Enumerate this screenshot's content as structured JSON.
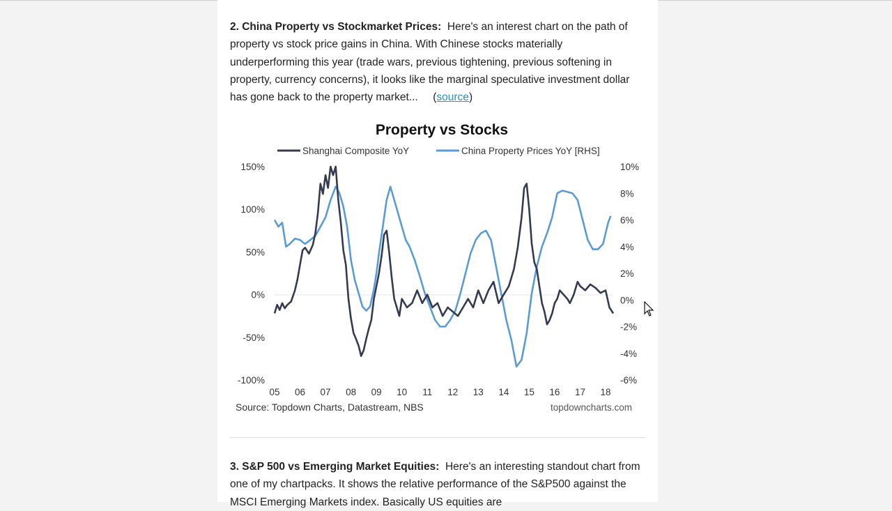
{
  "section2": {
    "heading": "2. China Property vs Stockmarket Prices:",
    "body": "Here's an interest chart on the path of property vs stock price gains in China.  With Chinese stocks materially underperforming this year (trade wars, previous tightening, previous softening in property, currency concerns), it looks like the marginal speculative investment dollar has gone back to the property market...",
    "link_open": "(",
    "link_text": "source",
    "link_close": ")"
  },
  "section3": {
    "heading": "3. S&P 500 vs Emerging Market Equities:",
    "body": "Here's an interesting standout chart from one of my chartpacks.  It shows the relative performance of the S&P500 against the MSCI Emerging Markets index.  Basically US equities are"
  },
  "chart_data": {
    "type": "line",
    "title": "Property vs Stocks",
    "source_text": "Source: Topdown Charts, Datastream, NBS",
    "watermark": "topdowncharts.com",
    "x_ticks": [
      "05",
      "06",
      "07",
      "08",
      "09",
      "10",
      "11",
      "12",
      "13",
      "14",
      "15",
      "16",
      "17",
      "18"
    ],
    "x_range": [
      2005,
      2018.3
    ],
    "y_left_ticks": [
      "150%",
      "100%",
      "50%",
      "0%",
      "-50%",
      "-100%"
    ],
    "y_left_range": [
      -100,
      150
    ],
    "y_right_ticks": [
      "10%",
      "8%",
      "6%",
      "4%",
      "2%",
      "0%",
      "-2%",
      "-4%",
      "-6%"
    ],
    "y_right_range": [
      -6,
      10
    ],
    "colors": {
      "stocks": "#343a4f",
      "property": "#5b9bd5"
    },
    "series": [
      {
        "name": "Shanghai Composite YoY",
        "axis": "left",
        "x": [
          2005.0,
          2005.1,
          2005.2,
          2005.3,
          2005.4,
          2005.5,
          2005.65,
          2005.8,
          2005.9,
          2006.0,
          2006.1,
          2006.2,
          2006.35,
          2006.5,
          2006.6,
          2006.7,
          2006.8,
          2006.9,
          2007.0,
          2007.1,
          2007.2,
          2007.3,
          2007.4,
          2007.5,
          2007.6,
          2007.7,
          2007.8,
          2007.9,
          2008.0,
          2008.1,
          2008.2,
          2008.3,
          2008.4,
          2008.5,
          2008.6,
          2008.7,
          2008.8,
          2008.9,
          2009.0,
          2009.1,
          2009.2,
          2009.3,
          2009.4,
          2009.5,
          2009.6,
          2009.7,
          2009.8,
          2009.9,
          2010.0,
          2010.2,
          2010.4,
          2010.6,
          2010.8,
          2011.0,
          2011.2,
          2011.4,
          2011.6,
          2011.8,
          2012.0,
          2012.2,
          2012.4,
          2012.6,
          2012.8,
          2013.0,
          2013.2,
          2013.4,
          2013.6,
          2013.8,
          2014.0,
          2014.2,
          2014.4,
          2014.55,
          2014.7,
          2014.8,
          2014.9,
          2015.0,
          2015.1,
          2015.2,
          2015.3,
          2015.4,
          2015.5,
          2015.6,
          2015.7,
          2015.8,
          2015.9,
          2016.0,
          2016.1,
          2016.2,
          2016.35,
          2016.5,
          2016.6,
          2016.75,
          2016.9,
          2017.0,
          2017.2,
          2017.4,
          2017.6,
          2017.8,
          2018.0,
          2018.15,
          2018.3
        ],
        "values": [
          -22,
          -12,
          -18,
          -10,
          -16,
          -12,
          -8,
          5,
          18,
          35,
          52,
          55,
          48,
          58,
          72,
          95,
          130,
          118,
          140,
          125,
          150,
          140,
          150,
          112,
          85,
          52,
          35,
          -5,
          -28,
          -45,
          -52,
          -60,
          -72,
          -65,
          -52,
          -40,
          -30,
          -5,
          10,
          25,
          45,
          70,
          75,
          50,
          20,
          -5,
          -15,
          -25,
          -5,
          -15,
          -10,
          5,
          -10,
          0,
          -15,
          -10,
          -25,
          -15,
          -20,
          -25,
          -15,
          -5,
          -15,
          5,
          -10,
          5,
          15,
          -10,
          0,
          10,
          30,
          55,
          90,
          125,
          130,
          100,
          60,
          38,
          30,
          10,
          -10,
          -20,
          -35,
          -30,
          -22,
          -10,
          -5,
          5,
          0,
          -5,
          -10,
          0,
          15,
          10,
          5,
          12,
          8,
          2,
          5,
          -15,
          -22
        ]
      },
      {
        "name": "China Property Prices YoY [RHS]",
        "axis": "right",
        "x": [
          2005.0,
          2005.15,
          2005.3,
          2005.45,
          2005.6,
          2005.8,
          2006.0,
          2006.2,
          2006.4,
          2006.6,
          2006.8,
          2007.0,
          2007.2,
          2007.4,
          2007.55,
          2007.7,
          2007.85,
          2008.0,
          2008.15,
          2008.3,
          2008.45,
          2008.6,
          2008.75,
          2008.9,
          2009.0,
          2009.1,
          2009.25,
          2009.4,
          2009.55,
          2009.7,
          2009.85,
          2010.0,
          2010.15,
          2010.3,
          2010.5,
          2010.7,
          2010.9,
          2011.1,
          2011.3,
          2011.5,
          2011.7,
          2011.9,
          2012.1,
          2012.3,
          2012.5,
          2012.7,
          2012.9,
          2013.1,
          2013.3,
          2013.5,
          2013.7,
          2013.9,
          2014.1,
          2014.3,
          2014.5,
          2014.7,
          2014.9,
          2015.1,
          2015.3,
          2015.5,
          2015.7,
          2015.9,
          2016.1,
          2016.3,
          2016.5,
          2016.7,
          2016.9,
          2017.1,
          2017.3,
          2017.5,
          2017.7,
          2017.9,
          2018.0,
          2018.1,
          2018.2
        ],
        "values": [
          6.0,
          5.5,
          5.8,
          4.0,
          4.2,
          4.6,
          4.5,
          4.2,
          4.5,
          4.8,
          5.5,
          6.2,
          7.5,
          8.5,
          8.0,
          7.0,
          5.5,
          3.0,
          1.5,
          0.5,
          -0.5,
          -0.8,
          -0.5,
          0.8,
          2.0,
          3.5,
          5.5,
          7.5,
          8.5,
          7.5,
          6.5,
          5.5,
          4.5,
          4.0,
          3.0,
          1.8,
          0.5,
          -0.5,
          -1.5,
          -2.0,
          -2.0,
          -1.5,
          -0.8,
          0.5,
          2.0,
          3.5,
          4.5,
          5.0,
          5.2,
          4.5,
          2.5,
          0.5,
          -1.5,
          -3.0,
          -5.0,
          -4.5,
          -2.5,
          0.5,
          2.5,
          4.0,
          5.0,
          6.2,
          8.0,
          8.2,
          8.1,
          8.0,
          7.5,
          6.0,
          4.5,
          3.8,
          3.8,
          4.2,
          5.0,
          5.8,
          6.3
        ]
      }
    ]
  }
}
